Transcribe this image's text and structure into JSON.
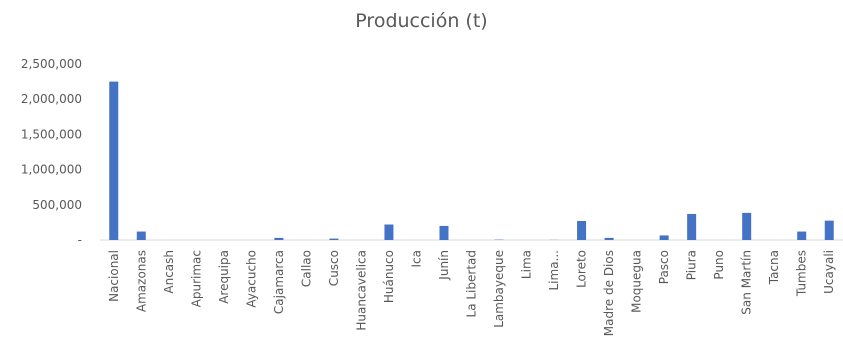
{
  "chart_data": {
    "type": "bar",
    "title": "Producción  (t)",
    "categories": [
      "Nacional",
      "Amazonas",
      "Ancash",
      "Apurimac",
      "Arequipa",
      "Ayacucho",
      "Cajamarca",
      "Callao",
      "Cusco",
      "Huancavelica",
      "Huánuco",
      "Ica",
      "Junín",
      "La Libertad",
      "Lambayeque",
      "Lima",
      "Lima...",
      "Loreto",
      "Madre de Dios",
      "Moquegua",
      "Pasco",
      "Piura",
      "Puno",
      "San Martín",
      "Tacna",
      "Tumbes",
      "Ucayali"
    ],
    "series": [
      {
        "values": [
          2250000,
          120000,
          0,
          0,
          0,
          0,
          30000,
          0,
          20000,
          0,
          220000,
          0,
          200000,
          0,
          5000,
          0,
          2000,
          270000,
          30000,
          0,
          65000,
          370000,
          0,
          385000,
          0,
          120000,
          275000
        ],
        "color": "#4472C4"
      }
    ],
    "yticks": [
      0,
      500000,
      1000000,
      1500000,
      2000000,
      2500000
    ],
    "ytick_labels": [
      "-",
      "500,000",
      "1,000,000",
      "1,500,000",
      "2,000,000",
      "2,500,000"
    ],
    "ylim": [
      0,
      2500000
    ],
    "xlabel": "",
    "ylabel": "",
    "grid": false,
    "legend": "none"
  }
}
